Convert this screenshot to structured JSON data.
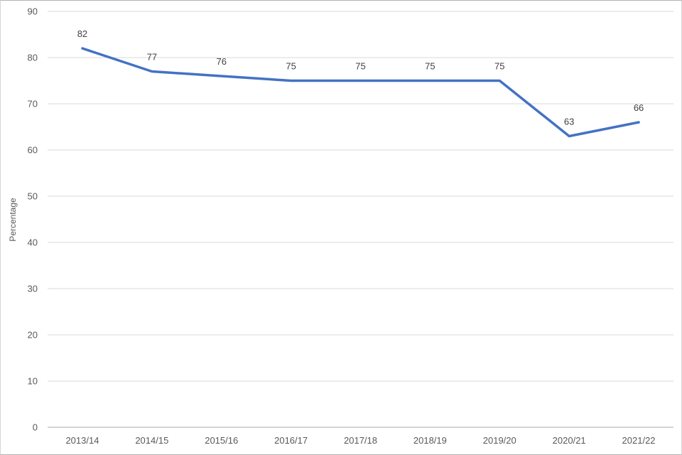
{
  "chart_data": {
    "type": "line",
    "title": "",
    "categories": [
      "2013/14",
      "2014/15",
      "2015/16",
      "2016/17",
      "2017/18",
      "2018/19",
      "2019/20",
      "2020/21",
      "2021/22"
    ],
    "values": [
      82,
      77,
      76,
      75,
      75,
      75,
      75,
      63,
      66
    ],
    "data_labels": [
      "82",
      "77",
      "76",
      "75",
      "75",
      "75",
      "75",
      "63",
      "66"
    ],
    "xlabel": "",
    "ylabel": "Percentage",
    "ylim": [
      0,
      90
    ],
    "ytick_step": 10,
    "yticks": [
      "0",
      "10",
      "20",
      "30",
      "40",
      "50",
      "60",
      "70",
      "80",
      "90"
    ],
    "grid": "horizontal",
    "legend": "none",
    "colors": {
      "line": "#4472C4",
      "gridline": "#D9D9D9",
      "axis_line": "#ABABAB",
      "tick_label": "#595959",
      "data_label": "#404040",
      "background": "#FFFFFF"
    }
  }
}
